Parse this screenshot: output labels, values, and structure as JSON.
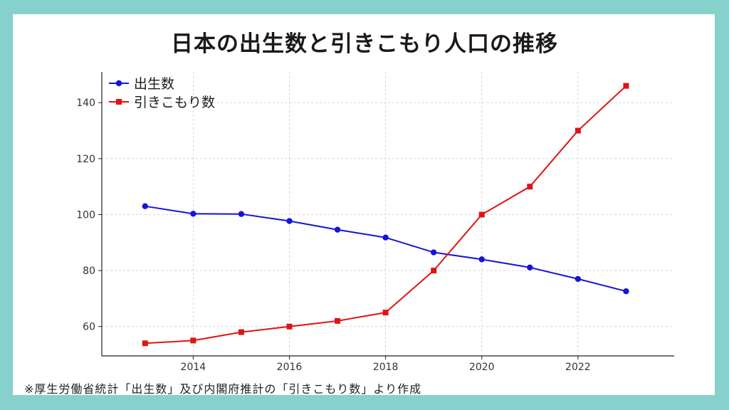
{
  "title": "日本の出生数と引きこもり人口の推移",
  "source_note": "※厚生労働省統計「出生数」及び内閣府推計の「引きこもり数」より作成",
  "colors": {
    "background": "#86d1cb",
    "series_births": "#1515d6",
    "series_hikikomori": "#e01414"
  },
  "chart_data": {
    "type": "line",
    "title": "",
    "xlabel": "",
    "ylabel": "",
    "x": [
      2013,
      2014,
      2015,
      2016,
      2017,
      2018,
      2019,
      2020,
      2021,
      2022,
      2023
    ],
    "xlim": [
      2012.1,
      2024.0
    ],
    "ylim": [
      49.5,
      151
    ],
    "xticks": [
      2014,
      2016,
      2018,
      2020,
      2022
    ],
    "yticks": [
      60,
      80,
      100,
      120,
      140
    ],
    "grid": true,
    "legend_position": "top-left",
    "series": [
      {
        "name": "出生数",
        "color": "#1515d6",
        "marker": "circle",
        "values": [
          103.0,
          100.3,
          100.2,
          97.7,
          94.6,
          91.8,
          86.5,
          84.0,
          81.1,
          77.0,
          72.6
        ]
      },
      {
        "name": "引きこもり数",
        "color": "#e01414",
        "marker": "square",
        "values": [
          54.0,
          55.0,
          58.0,
          60.0,
          62.0,
          65.0,
          80.0,
          100.0,
          110.0,
          130.0,
          146.0
        ]
      }
    ]
  }
}
